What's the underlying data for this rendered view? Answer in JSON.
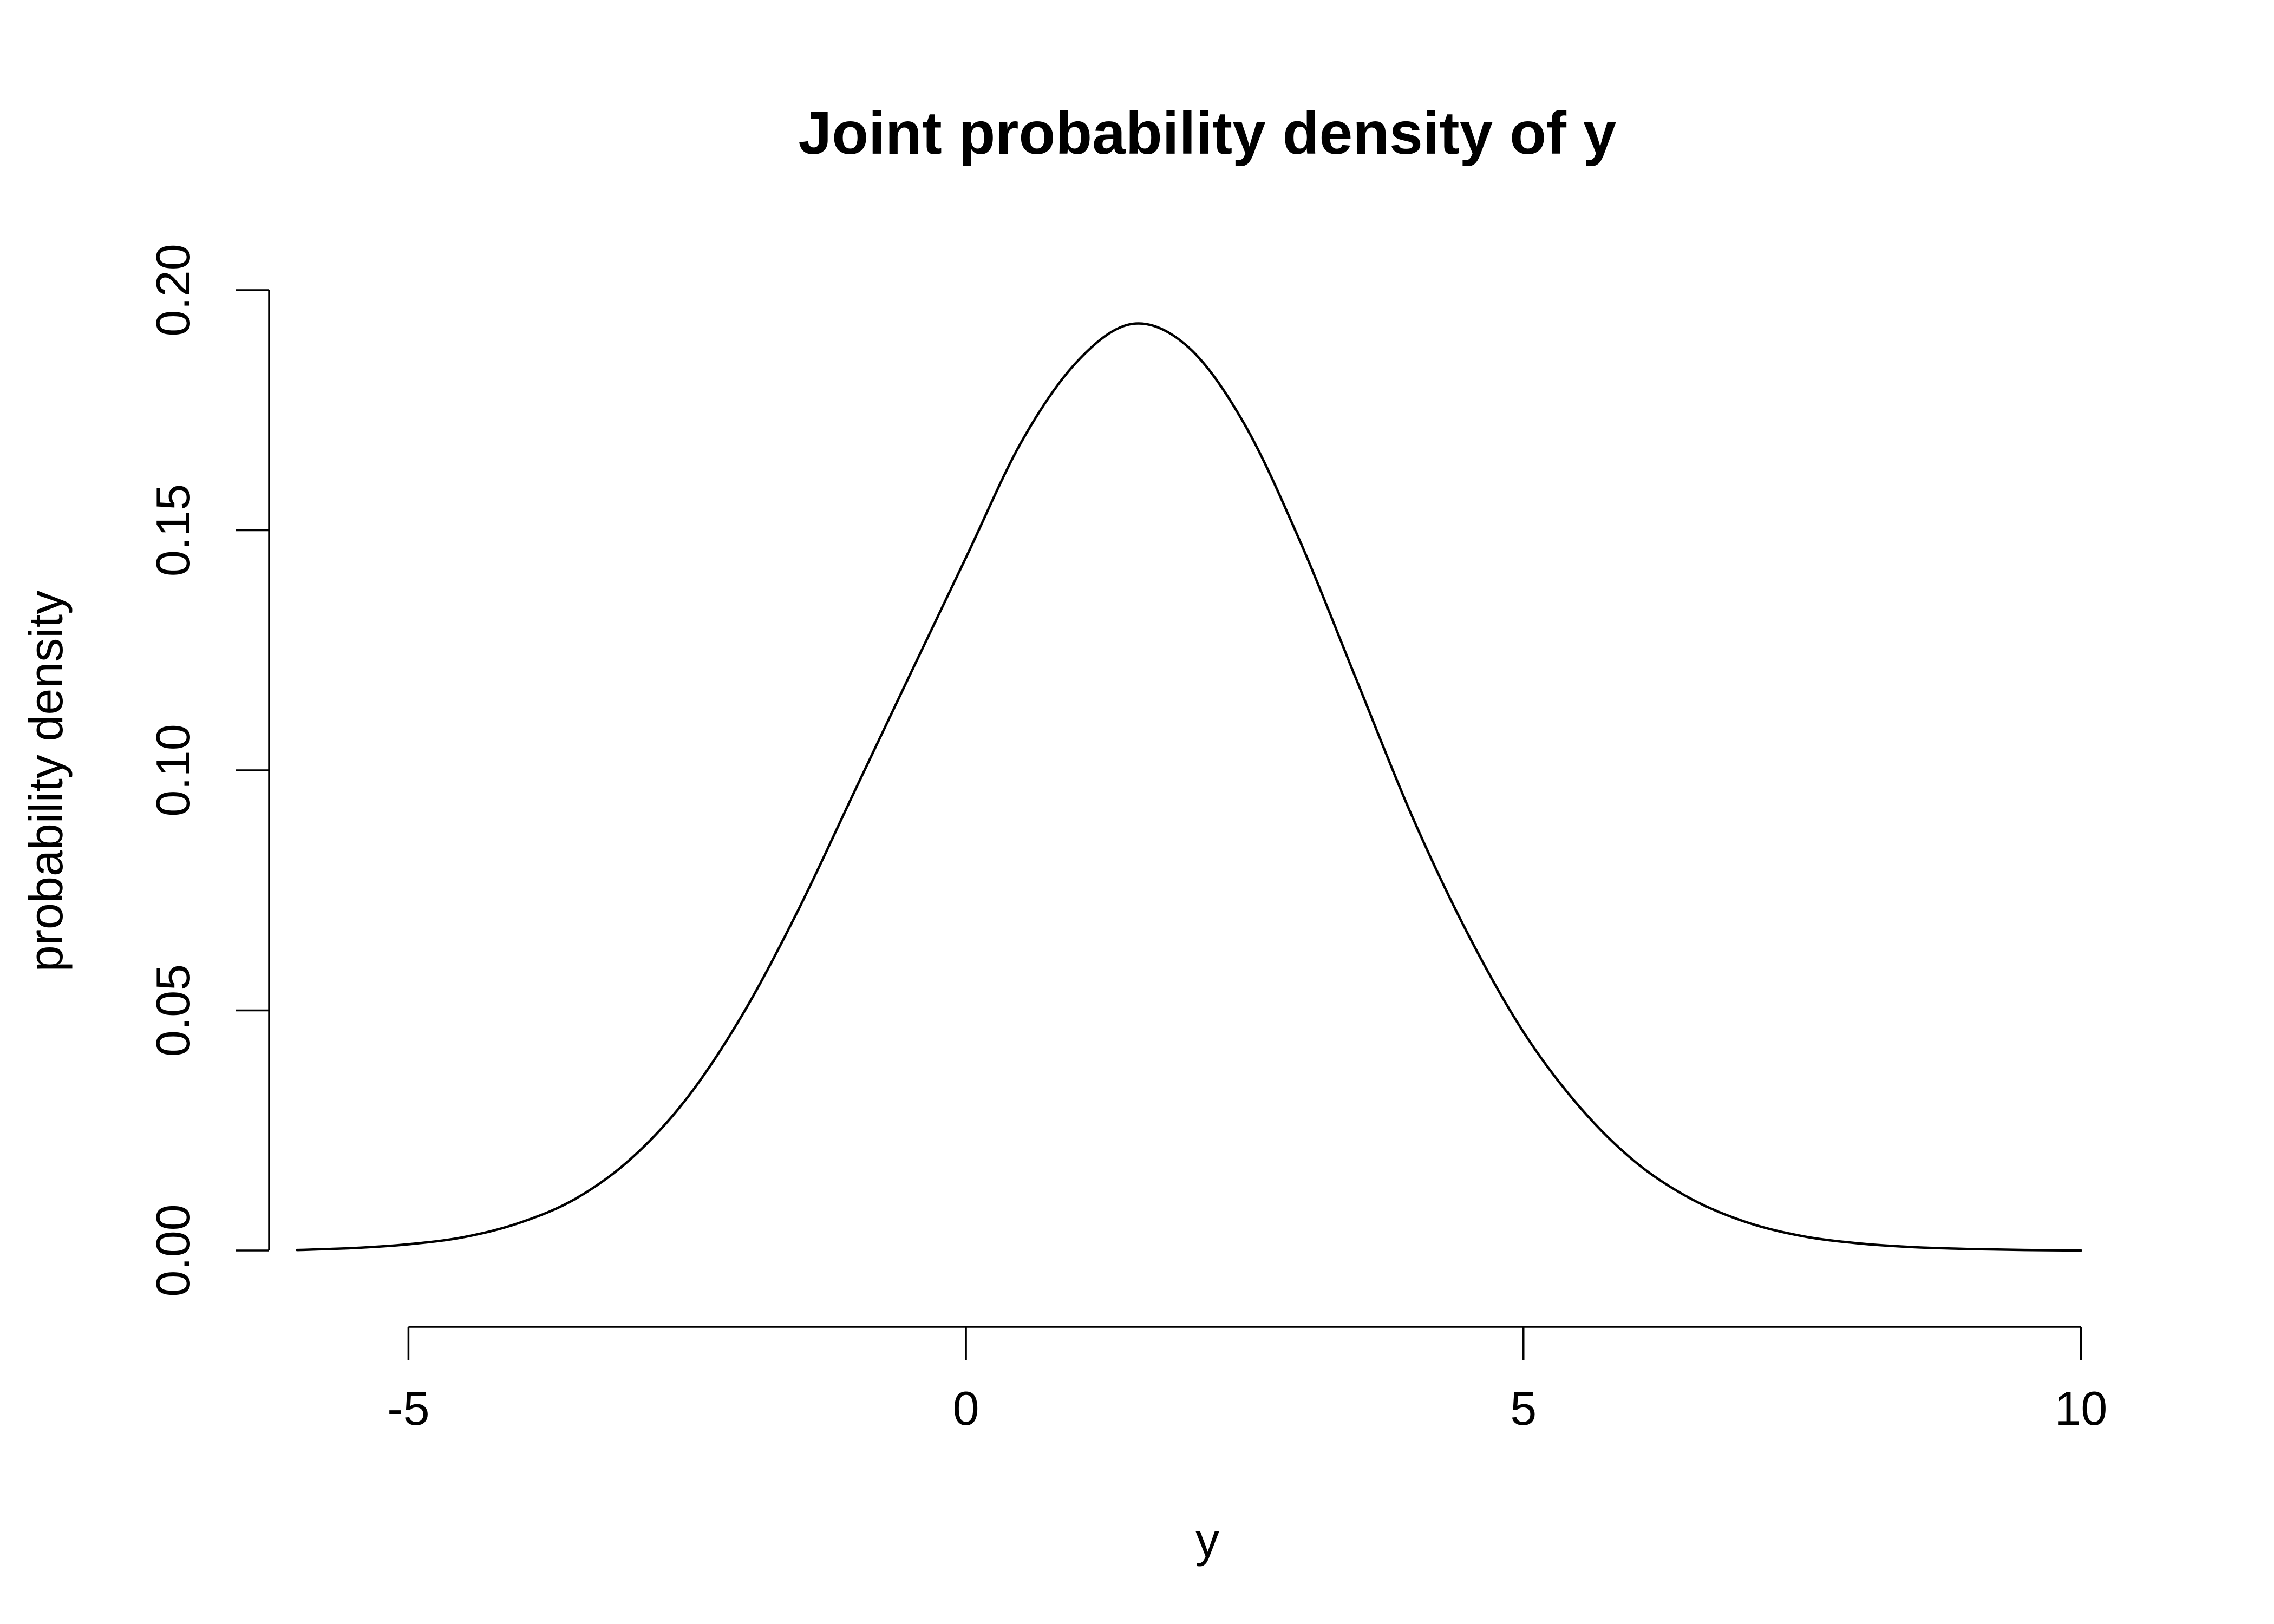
{
  "chart_data": {
    "type": "line",
    "title": "Joint probability density of y",
    "xlabel": "y",
    "ylabel": "probability density",
    "xlim": [
      -6.25,
      10.6
    ],
    "ylim": [
      -0.008,
      0.208
    ],
    "x_ticks": [
      -5,
      0,
      5,
      10
    ],
    "x_tick_labels": [
      "-5",
      "0",
      "5",
      "10"
    ],
    "y_ticks": [
      0.0,
      0.05,
      0.1,
      0.15,
      0.2
    ],
    "y_tick_labels": [
      "0.00",
      "0.05",
      "0.10",
      "0.15",
      "0.20"
    ],
    "grid": false,
    "legend": "none",
    "line_color": "#000000",
    "series": [
      {
        "x": [
          -6,
          -5.5,
          -5,
          -4.5,
          -4,
          -3.5,
          -3,
          -2.5,
          -2,
          -1.5,
          -1,
          -0.5,
          0,
          0.5,
          1,
          1.5,
          2,
          2.5,
          3,
          3.5,
          4,
          4.5,
          5,
          5.5,
          6,
          6.5,
          7,
          7.5,
          8,
          8.5,
          9,
          9.5,
          10
        ],
        "y": [
          0.0001,
          0.0005,
          0.0013,
          0.0028,
          0.0058,
          0.0108,
          0.0192,
          0.0318,
          0.0493,
          0.0711,
          0.0956,
          0.12,
          0.1443,
          0.1685,
          0.1852,
          0.193,
          0.188,
          0.172,
          0.1475,
          0.119,
          0.0905,
          0.066,
          0.0455,
          0.03,
          0.0185,
          0.0108,
          0.0059,
          0.003,
          0.0015,
          0.0007,
          0.0003,
          0.0001,
          0.0
        ]
      }
    ]
  }
}
